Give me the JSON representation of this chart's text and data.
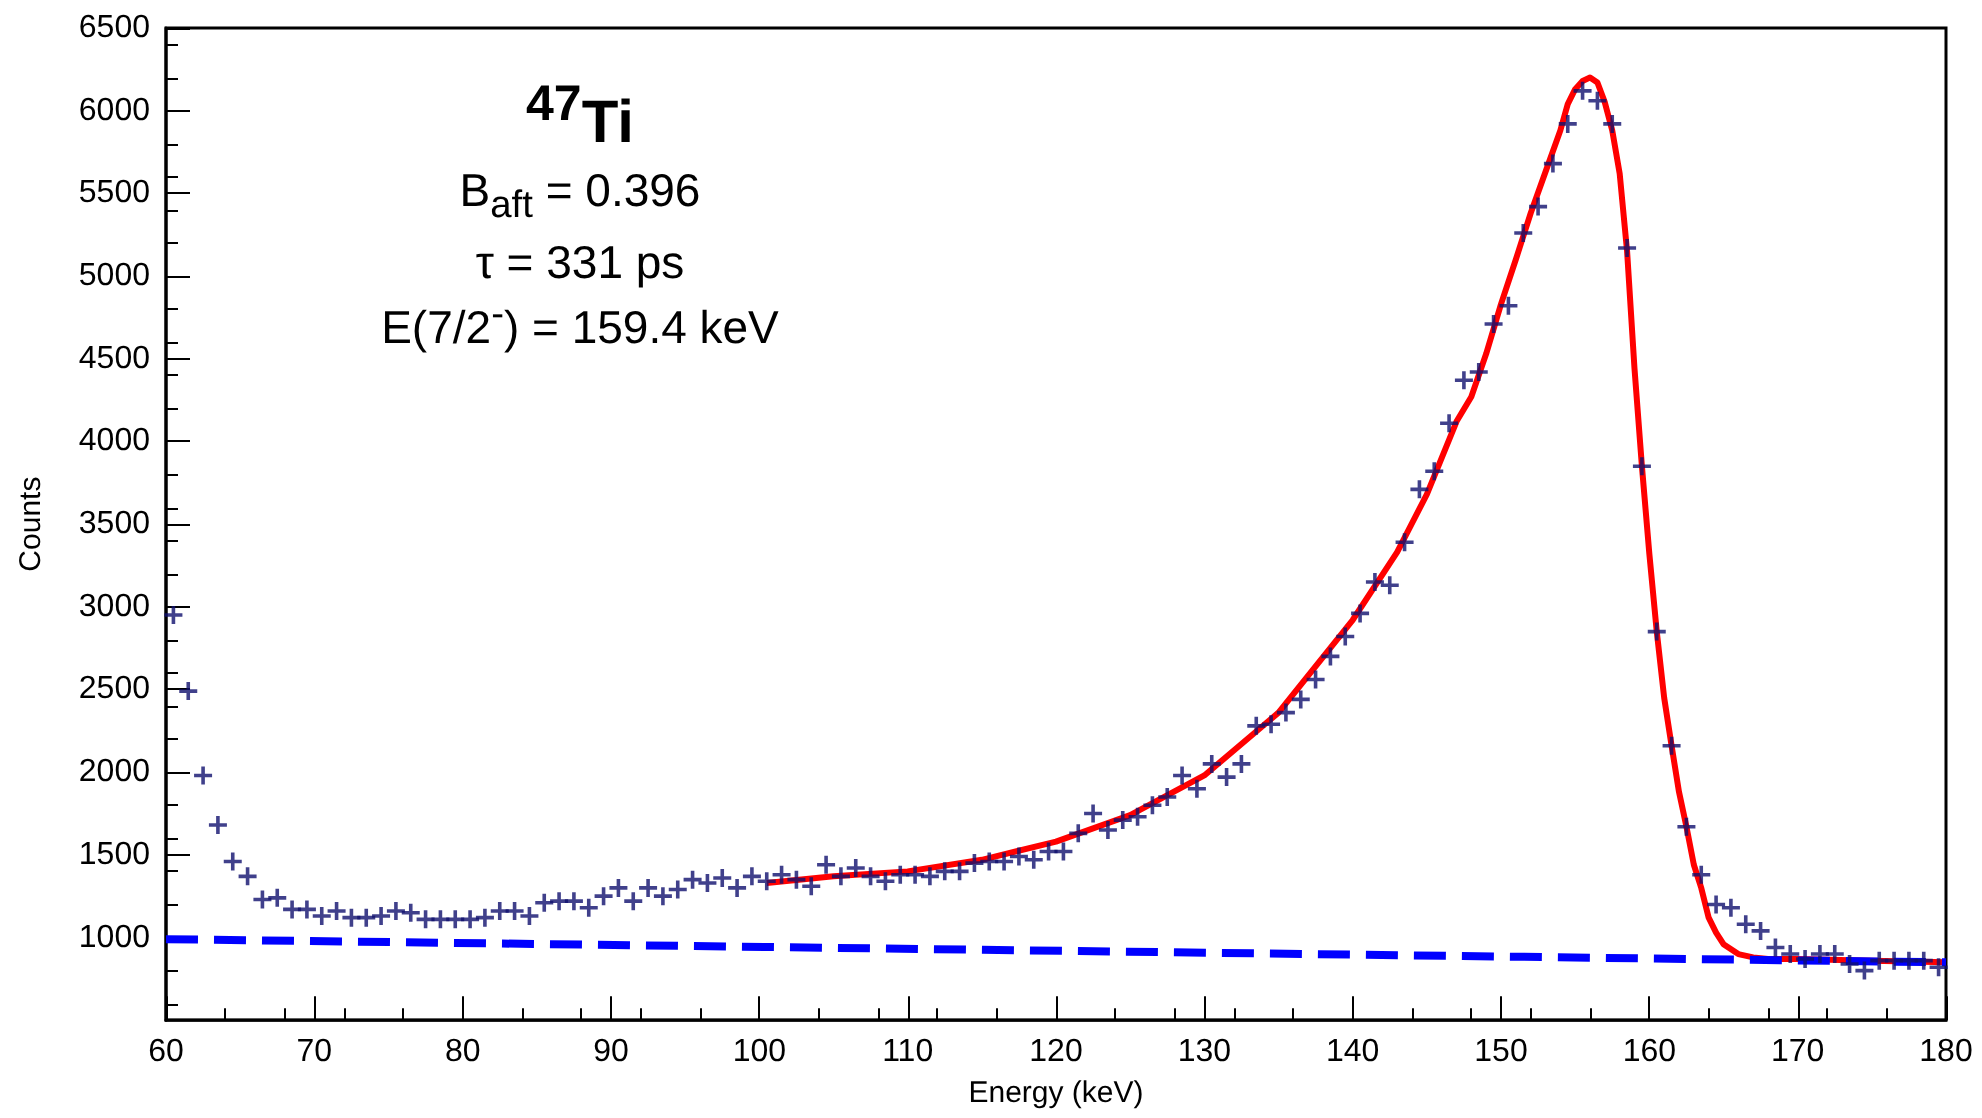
{
  "chart_data": {
    "type": "scatter",
    "xlabel": "Energy (keV)",
    "ylabel": "Counts",
    "xlim": [
      60,
      180
    ],
    "xticks": [
      60,
      70,
      80,
      90,
      100,
      110,
      120,
      130,
      140,
      150,
      160,
      170,
      180
    ],
    "ylim": [
      500,
      6500
    ],
    "yticks": [
      1000,
      1500,
      2000,
      2500,
      3000,
      3500,
      4000,
      4500,
      5000,
      5500,
      6000,
      6500
    ],
    "grid": false,
    "annotations": [
      "$^{47}$Ti",
      "B$_{aft}$ = 0.396",
      "τ = 331 ps",
      "E(7/2$^{-}$) = 159.4 keV"
    ],
    "series": [
      {
        "marker": "cross",
        "color": "#10106e",
        "x": [
          60.5,
          61.5,
          62.5,
          63.5,
          64.5,
          65.5,
          66.5,
          67.5,
          68.5,
          69.5,
          70.5,
          71.5,
          72.5,
          73.5,
          74.5,
          75.5,
          76.5,
          77.5,
          78.5,
          79.5,
          80.5,
          81.5,
          82.5,
          83.5,
          84.5,
          85.5,
          86.5,
          87.5,
          88.5,
          89.5,
          90.5,
          91.5,
          92.5,
          93.5,
          94.5,
          95.5,
          96.5,
          97.5,
          98.5,
          99.5,
          100.5,
          101.5,
          102.5,
          103.5,
          104.5,
          105.5,
          106.5,
          107.5,
          108.5,
          109.5,
          110.5,
          111.5,
          112.5,
          113.5,
          114.5,
          115.5,
          116.5,
          117.5,
          118.5,
          119.5,
          120.5,
          121.5,
          122.5,
          123.5,
          124.5,
          125.5,
          126.5,
          127.5,
          128.5,
          129.5,
          130.5,
          131.5,
          132.5,
          133.5,
          134.5,
          135.5,
          136.5,
          137.5,
          138.5,
          139.5,
          140.5,
          141.5,
          142.5,
          143.5,
          144.5,
          145.5,
          146.5,
          147.5,
          148.5,
          149.5,
          150.5,
          151.5,
          152.5,
          153.5,
          154.5,
          155.5,
          156.5,
          157.5,
          158.5,
          159.5,
          160.5,
          161.5,
          162.5,
          163.5,
          164.5,
          165.5,
          166.5,
          167.5,
          168.5,
          169.5,
          170.5,
          171.5,
          172.5,
          173.5,
          174.5,
          175.5,
          176.5,
          177.5,
          178.5,
          179.5
        ],
        "values": [
          2950,
          2490,
          1980,
          1680,
          1460,
          1370,
          1230,
          1240,
          1170,
          1170,
          1130,
          1160,
          1120,
          1120,
          1130,
          1160,
          1150,
          1110,
          1110,
          1110,
          1110,
          1120,
          1160,
          1160,
          1130,
          1210,
          1220,
          1220,
          1180,
          1250,
          1300,
          1220,
          1300,
          1250,
          1290,
          1350,
          1330,
          1360,
          1300,
          1370,
          1340,
          1380,
          1350,
          1310,
          1440,
          1370,
          1420,
          1370,
          1340,
          1380,
          1380,
          1370,
          1400,
          1400,
          1450,
          1460,
          1460,
          1490,
          1470,
          1520,
          1520,
          1630,
          1750,
          1650,
          1710,
          1730,
          1800,
          1850,
          1980,
          1900,
          2050,
          1970,
          2050,
          2280,
          2290,
          2360,
          2440,
          2560,
          2700,
          2820,
          2960,
          3150,
          3130,
          3390,
          3710,
          3820,
          4110,
          4370,
          4420,
          4710,
          4820,
          5260,
          5420,
          5680,
          5920,
          6120,
          6060,
          5920,
          5170,
          3850,
          2850,
          2160,
          1670,
          1380,
          1200,
          1180,
          1080,
          1040,
          940,
          900,
          870,
          900,
          900,
          840,
          800,
          860,
          860,
          860,
          860,
          820
        ]
      },
      {
        "type": "line",
        "marker": "none",
        "line_style": "solid",
        "color": "#ff0000",
        "x": [
          100.5,
          105,
          110,
          115,
          120,
          125,
          130,
          135,
          140,
          143,
          145,
          147,
          148,
          149,
          150,
          151,
          152,
          153,
          154,
          154.5,
          155,
          155.5,
          156,
          156.5,
          157,
          157.5,
          158,
          158.5,
          159,
          159.5,
          160,
          160.5,
          161,
          161.5,
          162,
          162.5,
          163,
          163.5,
          164,
          164.5,
          165,
          166,
          167,
          168,
          170,
          175,
          180
        ],
        "values": [
          1330,
          1370,
          1400,
          1470,
          1580,
          1740,
          1980,
          2360,
          2920,
          3330,
          3680,
          4120,
          4270,
          4530,
          4830,
          5100,
          5380,
          5630,
          5880,
          6040,
          6130,
          6180,
          6200,
          6170,
          6050,
          5880,
          5620,
          5150,
          4440,
          3850,
          3320,
          2850,
          2450,
          2160,
          1880,
          1670,
          1440,
          1300,
          1120,
          1030,
          960,
          900,
          880,
          870,
          870,
          860,
          850
        ]
      },
      {
        "type": "line",
        "marker": "none",
        "line_style": "dashed",
        "color": "#0000ff",
        "x": [
          60,
          180
        ],
        "values": [
          990,
          850
        ]
      }
    ]
  }
}
